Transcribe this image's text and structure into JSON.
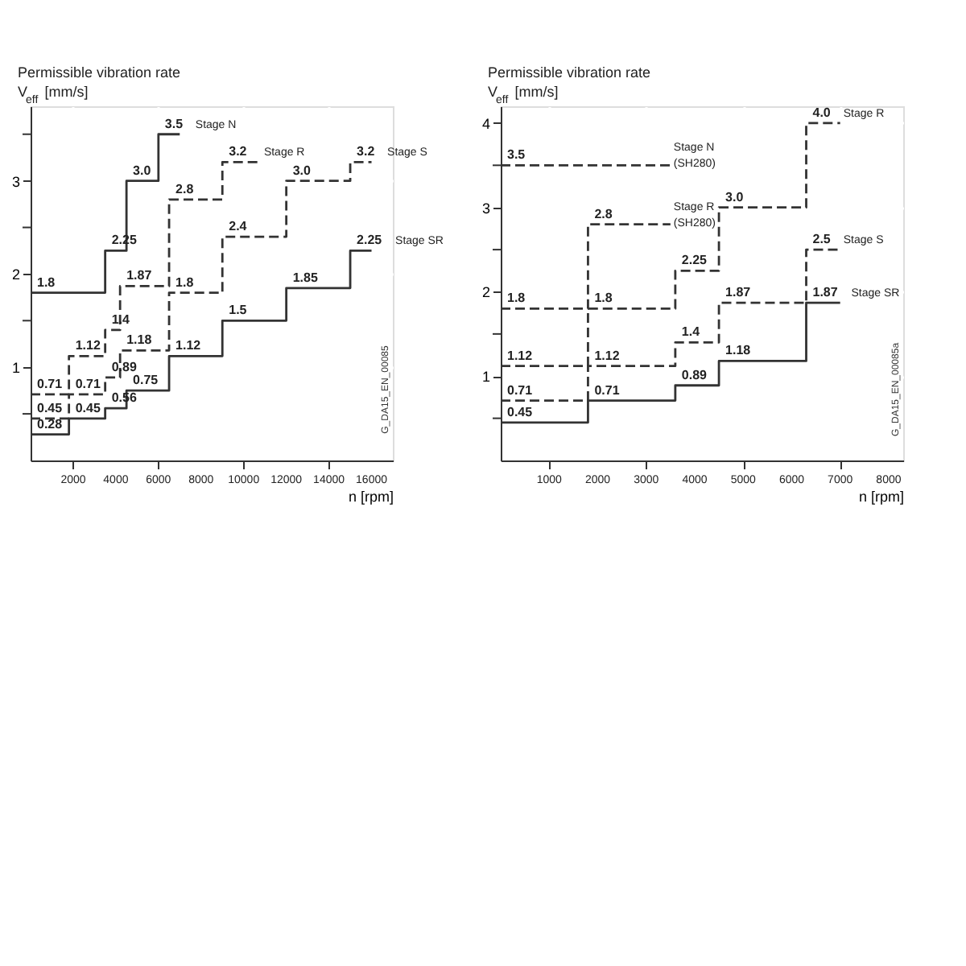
{
  "chart_data": [
    {
      "type": "step",
      "ylabel": "Permissible vibration rate\nV$_{eff}$ [mm/s]",
      "xlabel": "n [rpm]",
      "xlim": [
        0,
        17000
      ],
      "xticks": [
        2000,
        4000,
        6000,
        8000,
        10000,
        12000,
        14000,
        16000
      ],
      "ylim": [
        0,
        3.8
      ],
      "yticks": [
        {
          "value": 0.5,
          "label": null
        },
        1,
        {
          "value": 1.5,
          "label": null
        },
        2,
        {
          "value": 2.5,
          "label": null
        },
        3,
        {
          "value": 3.5,
          "label": null
        }
      ],
      "grid": true,
      "legend": false,
      "annotations": [
        "G_DA15_EN_00085"
      ],
      "series": [
        {
          "name": "Stage N",
          "color": "#333333",
          "line_style": "solid",
          "x": [
            0,
            3500,
            4500,
            6000,
            7000
          ],
          "values": [
            1.8,
            2.25,
            3.0,
            3.5,
            3.5
          ],
          "value_labels": [
            "1.8",
            "2.25",
            "3.0",
            "3.5",
            null
          ]
        },
        {
          "name": "Stage R",
          "color": "#333333",
          "line_style": "dashed",
          "x": [
            0,
            1800,
            3500,
            4200,
            6500,
            9000,
            10800
          ],
          "values": [
            0.71,
            1.12,
            1.4,
            1.87,
            2.8,
            3.2,
            3.2
          ],
          "value_labels": [
            "0.71",
            "1.12",
            "1.4",
            "1.87",
            "2.8",
            "3.2",
            null
          ]
        },
        {
          "name": "Stage S",
          "color": "#333333",
          "line_style": "dashed",
          "x": [
            0,
            1800,
            3500,
            4200,
            6500,
            9000,
            12000,
            15000,
            16000
          ],
          "values": [
            0.45,
            0.71,
            0.89,
            1.18,
            1.8,
            2.4,
            3.0,
            3.2,
            3.2
          ],
          "value_labels": [
            "0.45",
            "0.71",
            "0.89",
            "1.18",
            "1.8",
            "2.4",
            "3.0",
            "3.2",
            null
          ]
        },
        {
          "name": "Stage SR",
          "color": "#333333",
          "line_style": "solid",
          "x": [
            0,
            1800,
            3500,
            4500,
            6500,
            9000,
            12000,
            15000,
            16000
          ],
          "values": [
            0.28,
            0.45,
            0.56,
            0.75,
            1.12,
            1.5,
            1.85,
            2.25,
            2.25
          ],
          "value_labels": [
            "0.28",
            "0.45",
            "0.56",
            "0.75",
            "1.12",
            "1.5",
            "1.85",
            "2.25",
            null
          ]
        }
      ]
    },
    {
      "type": "step",
      "ylabel": "Permissible vibration rate\nV$_{eff}$ [mm/s]",
      "xlabel": "n [rpm]",
      "xlim": [
        0,
        8300
      ],
      "xticks": [
        1000,
        2000,
        3000,
        4000,
        5000,
        6000,
        7000,
        8000
      ],
      "ylim": [
        0,
        4.2
      ],
      "yticks": [
        {
          "value": 0.5,
          "label": null
        },
        1,
        {
          "value": 1.5,
          "label": null
        },
        2,
        {
          "value": 2.5,
          "label": null
        },
        3,
        {
          "value": 3.5,
          "label": null
        },
        4
      ],
      "grid": true,
      "legend": false,
      "annotations": [
        "G_DA15_EN_00085a"
      ],
      "series": [
        {
          "name": "Stage N\n(SH280)",
          "color": "#333333",
          "line_style": "dashed",
          "x": [
            0,
            3500
          ],
          "values": [
            3.5,
            3.5
          ],
          "value_labels": [
            "3.5",
            null
          ]
        },
        {
          "name": "Stage R\n(SH280)",
          "color": "#333333",
          "line_style": "dashed",
          "x": [
            0,
            1800,
            3500
          ],
          "values": [
            1.8,
            2.8,
            2.8
          ],
          "value_labels": [
            "1.8",
            "2.8",
            null
          ]
        },
        {
          "name": "Stage R",
          "color": "#333333",
          "line_style": "dashed",
          "x": [
            0,
            1800,
            3600,
            4500,
            6300,
            7000
          ],
          "values": [
            1.12,
            1.8,
            2.25,
            3.0,
            4.0,
            4.0
          ],
          "value_labels": [
            "1.12",
            "1.8",
            "2.25",
            "3.0",
            "4.0",
            null
          ]
        },
        {
          "name": "Stage S",
          "color": "#333333",
          "line_style": "dashed",
          "x": [
            0,
            1800,
            3600,
            4500,
            6300,
            7000
          ],
          "values": [
            0.71,
            1.12,
            1.4,
            1.87,
            2.5,
            2.5
          ],
          "value_labels": [
            "0.71",
            "1.12",
            "1.4",
            "1.87",
            "2.5",
            null
          ]
        },
        {
          "name": "Stage SR",
          "color": "#333333",
          "line_style": "solid",
          "x": [
            0,
            1800,
            3600,
            4500,
            6300,
            7000
          ],
          "values": [
            0.45,
            0.71,
            0.89,
            1.18,
            1.87,
            1.87
          ],
          "value_labels": [
            "0.45",
            "0.71",
            "0.89",
            "1.18",
            "1.87",
            null
          ]
        }
      ]
    }
  ]
}
